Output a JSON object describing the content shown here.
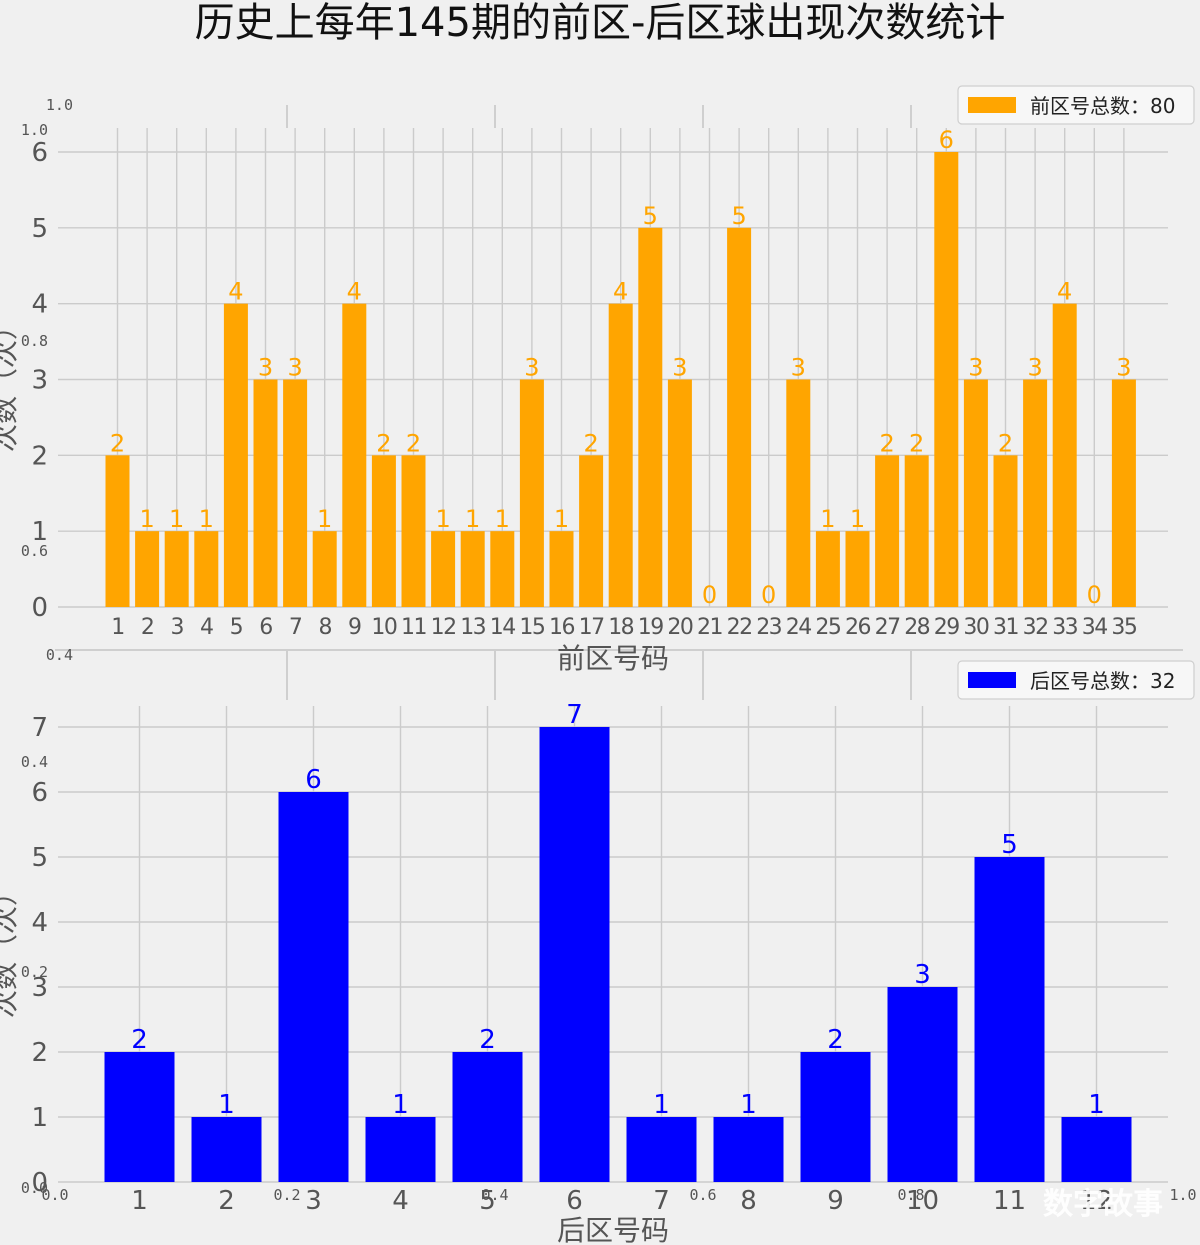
{
  "title": "历史上每年145期的前区-后区球出现次数统计",
  "watermark": "数字故事",
  "ghost_ticks": {
    "x": [
      "0.0",
      "0.2",
      "0.4",
      "0.6",
      "0.8",
      "1.0"
    ],
    "y": [
      "0.0",
      "0.2",
      "0.4",
      "0.6",
      "0.8",
      "1.0"
    ]
  },
  "chart_data": [
    {
      "type": "bar",
      "name": "front",
      "color": "#FFA500",
      "legend": "前区号总数：80",
      "xlabel": "前区号码",
      "ylabel": "次数（次）",
      "ylim": [
        0,
        6
      ],
      "yticks": [
        0,
        1,
        2,
        3,
        4,
        5,
        6
      ],
      "grid": true,
      "legend_position": "top-right",
      "categories": [
        "1",
        "2",
        "3",
        "4",
        "5",
        "6",
        "7",
        "8",
        "9",
        "10",
        "11",
        "12",
        "13",
        "14",
        "15",
        "16",
        "17",
        "18",
        "19",
        "20",
        "21",
        "22",
        "23",
        "24",
        "25",
        "26",
        "27",
        "28",
        "29",
        "30",
        "31",
        "32",
        "33",
        "34",
        "35"
      ],
      "values": [
        2,
        1,
        1,
        1,
        4,
        3,
        3,
        1,
        4,
        2,
        2,
        1,
        1,
        1,
        3,
        1,
        2,
        4,
        5,
        3,
        0,
        5,
        0,
        3,
        1,
        1,
        2,
        2,
        6,
        3,
        2,
        3,
        4,
        0,
        3
      ]
    },
    {
      "type": "bar",
      "name": "back",
      "color": "#0000FF",
      "legend": "后区号总数：32",
      "xlabel": "后区号码",
      "ylabel": "次数（次）",
      "ylim": [
        0,
        7
      ],
      "yticks": [
        0,
        1,
        2,
        3,
        4,
        5,
        6,
        7
      ],
      "grid": true,
      "legend_position": "top-right",
      "categories": [
        "1",
        "2",
        "3",
        "4",
        "5",
        "6",
        "7",
        "8",
        "9",
        "10",
        "11",
        "12"
      ],
      "values": [
        2,
        1,
        6,
        1,
        2,
        7,
        1,
        1,
        2,
        3,
        5,
        1
      ]
    }
  ]
}
